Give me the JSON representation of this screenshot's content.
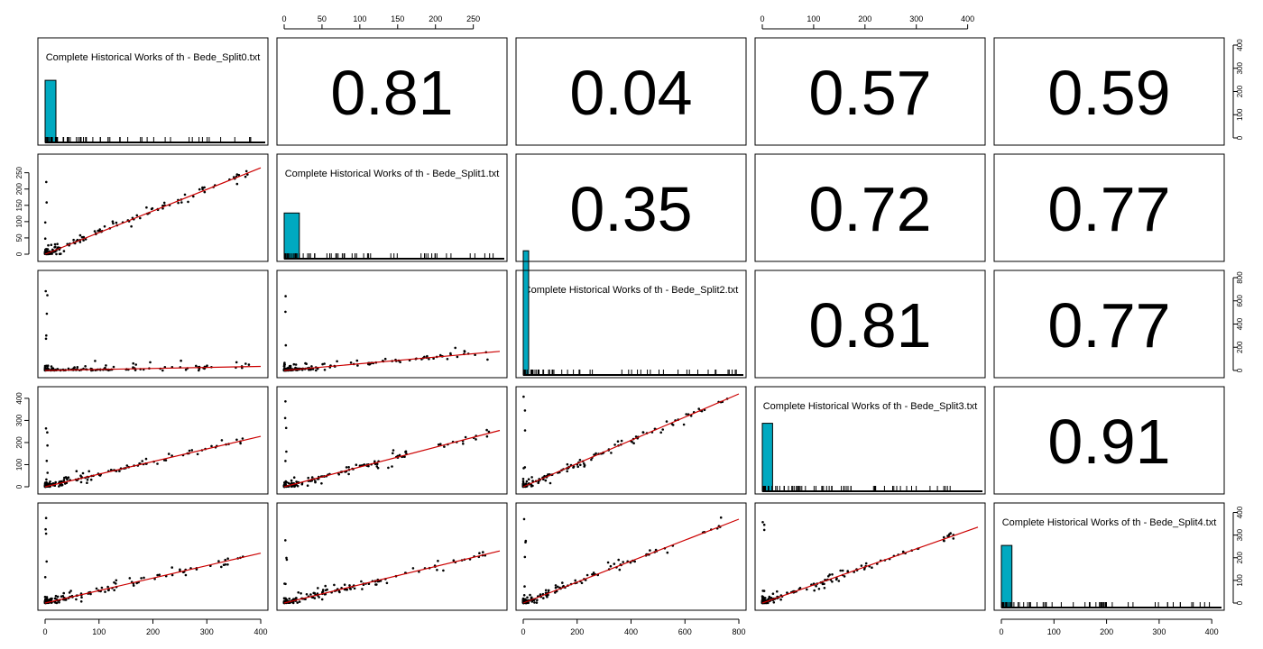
{
  "chart_data": {
    "type": "scatter",
    "variables": [
      {
        "label": "Complete Historical Works of th - Bede_Split0.txt",
        "range": [
          0,
          400
        ],
        "ticks": [
          0,
          100,
          200,
          300,
          400
        ],
        "hist_peak": 265
      },
      {
        "label": "Complete Historical Works of th - Bede_Split1.txt",
        "range": [
          0,
          285
        ],
        "ticks": [
          0,
          50,
          100,
          150,
          200,
          250
        ],
        "hist_peak": 195
      },
      {
        "label": "Complete Historical Works of th - Bede_Split2.txt",
        "range": [
          0,
          800
        ],
        "ticks": [
          0,
          200,
          400,
          600,
          800
        ],
        "hist_peak": 530
      },
      {
        "label": "Complete Historical Works of th - Bede_Split3.txt",
        "range": [
          0,
          420
        ],
        "ticks": [
          0,
          100,
          200,
          300,
          400
        ],
        "hist_peak": 290
      },
      {
        "label": "Complete Historical Works of th - Bede_Split4.txt",
        "range": [
          0,
          410
        ],
        "ticks": [
          0,
          100,
          200,
          300,
          400
        ],
        "hist_peak": 265
      }
    ],
    "hist_bin_width": 20,
    "hist_fill_color": "#00A9C0",
    "fit_line_color": "#CC0000",
    "correlations": [
      {
        "row": 0,
        "col": 1,
        "value": "0.81"
      },
      {
        "row": 0,
        "col": 2,
        "value": "0.04"
      },
      {
        "row": 0,
        "col": 3,
        "value": "0.57"
      },
      {
        "row": 0,
        "col": 4,
        "value": "0.59"
      },
      {
        "row": 1,
        "col": 2,
        "value": "0.35"
      },
      {
        "row": 1,
        "col": 3,
        "value": "0.72"
      },
      {
        "row": 1,
        "col": 4,
        "value": "0.77"
      },
      {
        "row": 2,
        "col": 3,
        "value": "0.81"
      },
      {
        "row": 2,
        "col": 4,
        "value": "0.77"
      },
      {
        "row": 3,
        "col": 4,
        "value": "0.91"
      }
    ],
    "fit_lines": [
      {
        "row": 1,
        "col": 0,
        "x": [
          0,
          400
        ],
        "y": [
          0,
          265
        ]
      },
      {
        "row": 2,
        "col": 0,
        "x": [
          0,
          400
        ],
        "y": [
          0,
          35
        ]
      },
      {
        "row": 2,
        "col": 1,
        "x": [
          0,
          285
        ],
        "y": [
          0,
          165
        ]
      },
      {
        "row": 3,
        "col": 0,
        "x": [
          0,
          400
        ],
        "y": [
          0,
          228
        ]
      },
      {
        "row": 3,
        "col": 1,
        "x": [
          0,
          285
        ],
        "y": [
          0,
          255
        ]
      },
      {
        "row": 3,
        "col": 2,
        "x": [
          0,
          800
        ],
        "y": [
          0,
          420
        ]
      },
      {
        "row": 4,
        "col": 0,
        "x": [
          0,
          400
        ],
        "y": [
          0,
          220
        ]
      },
      {
        "row": 4,
        "col": 1,
        "x": [
          0,
          285
        ],
        "y": [
          0,
          230
        ]
      },
      {
        "row": 4,
        "col": 2,
        "x": [
          0,
          800
        ],
        "y": [
          0,
          370
        ]
      },
      {
        "row": 4,
        "col": 3,
        "x": [
          0,
          420
        ],
        "y": [
          0,
          335
        ]
      }
    ],
    "axes": {
      "top": [
        {
          "col": 1,
          "var": 1
        },
        {
          "col": 3,
          "var": 3
        }
      ],
      "bottom": [
        {
          "col": 0,
          "var": 0
        },
        {
          "col": 2,
          "var": 2
        },
        {
          "col": 4,
          "var": 4
        }
      ],
      "left": [
        {
          "row": 1,
          "var": 1
        },
        {
          "row": 3,
          "var": 3
        }
      ],
      "right": [
        {
          "row": 0,
          "var": 0
        },
        {
          "row": 2,
          "var": 2
        },
        {
          "row": 4,
          "var": 4
        }
      ]
    }
  }
}
